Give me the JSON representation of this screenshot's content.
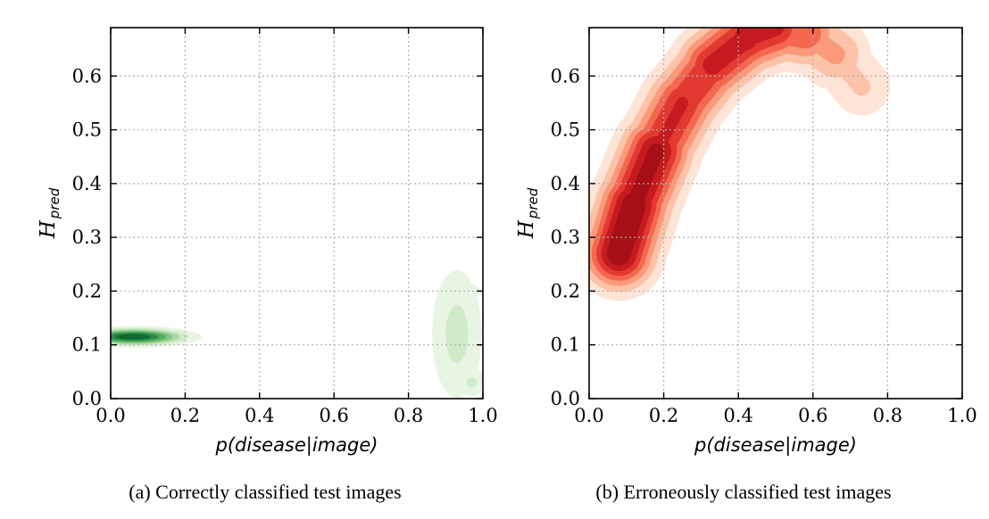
{
  "chart_data": [
    {
      "type": "contour",
      "caption": "(a) Correctly classified test images",
      "xlabel": "p(disease|image)",
      "ylabel": "H_pred",
      "ylabel_script": "H",
      "ylabel_sub": "pred",
      "xlim": [
        0.0,
        1.0
      ],
      "ylim": [
        0.0,
        0.69
      ],
      "xticks": [
        0.0,
        0.2,
        0.4,
        0.6,
        0.8,
        1.0
      ],
      "xtick_labels": [
        "0.0",
        "0.2",
        "0.4",
        "0.6",
        "0.8",
        "1.0"
      ],
      "yticks": [
        0.0,
        0.1,
        0.2,
        0.3,
        0.4,
        0.5,
        0.6
      ],
      "ytick_labels": [
        "0.0",
        "0.1",
        "0.2",
        "0.3",
        "0.4",
        "0.5",
        "0.6"
      ],
      "grid": true,
      "colormap": "Greens",
      "levels": [
        "#e8f5e3",
        "#cfebc9",
        "#a9dba0",
        "#7cc47f",
        "#4eaa5d",
        "#2a8a45",
        "#0f6a32"
      ],
      "density_clusters": [
        {
          "x_center": 0.06,
          "y_center": 0.115,
          "x_spread": 0.09,
          "y_spread": 0.01,
          "peak": 1.0
        },
        {
          "x_center": 0.93,
          "y_center": 0.12,
          "x_spread": 0.05,
          "y_spread": 0.09,
          "peak": 0.3
        },
        {
          "x_center": 0.97,
          "y_center": 0.03,
          "x_spread": 0.03,
          "y_spread": 0.02,
          "peak": 0.28
        },
        {
          "x_center": 0.95,
          "y_center": 0.2,
          "x_spread": 0.04,
          "y_spread": 0.015,
          "peak": 0.22
        }
      ]
    },
    {
      "type": "contour",
      "caption": "(b) Erroneously classified test images",
      "xlabel": "p(disease|image)",
      "ylabel": "H_pred",
      "ylabel_script": "H",
      "ylabel_sub": "pred",
      "xlim": [
        0.0,
        1.0
      ],
      "ylim": [
        0.0,
        0.69
      ],
      "xticks": [
        0.0,
        0.2,
        0.4,
        0.6,
        0.8,
        1.0
      ],
      "xtick_labels": [
        "0.0",
        "0.2",
        "0.4",
        "0.6",
        "0.8",
        "1.0"
      ],
      "yticks": [
        0.0,
        0.1,
        0.2,
        0.3,
        0.4,
        0.5,
        0.6
      ],
      "ytick_labels": [
        "0.0",
        "0.1",
        "0.2",
        "0.3",
        "0.4",
        "0.5",
        "0.6"
      ],
      "grid": true,
      "colormap": "Reds",
      "levels": [
        "#fde4d6",
        "#fcc3a9",
        "#fb9a7a",
        "#f4684f",
        "#e23a31",
        "#c51b20",
        "#a50f15"
      ],
      "density_ridge": {
        "points": [
          {
            "x": 0.08,
            "y": 0.27
          },
          {
            "x": 0.12,
            "y": 0.36
          },
          {
            "x": 0.18,
            "y": 0.46
          },
          {
            "x": 0.25,
            "y": 0.55
          },
          {
            "x": 0.33,
            "y": 0.62
          },
          {
            "x": 0.42,
            "y": 0.67
          },
          {
            "x": 0.5,
            "y": 0.69
          },
          {
            "x": 0.58,
            "y": 0.68
          },
          {
            "x": 0.66,
            "y": 0.64
          },
          {
            "x": 0.73,
            "y": 0.58
          }
        ],
        "peak": [
          1.0,
          1.0,
          0.85,
          0.7,
          0.78,
          0.85,
          0.75,
          0.5,
          0.32,
          0.22
        ]
      }
    }
  ]
}
